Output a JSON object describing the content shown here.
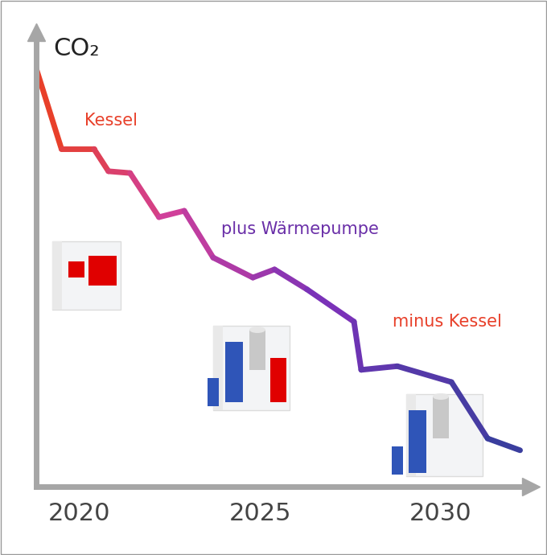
{
  "chart_data": {
    "type": "line",
    "y_label": "CO₂",
    "x": [
      2018.8,
      2019.5,
      2020.4,
      2020.8,
      2021.4,
      2022.2,
      2022.9,
      2023.7,
      2024.8,
      2025.4,
      2026.3,
      2027.6,
      2027.8,
      2028.8,
      2030.3,
      2031.3,
      2032.2
    ],
    "values": [
      92.0,
      74.3,
      74.3,
      69.4,
      69.0,
      59.3,
      60.7,
      50.4,
      46.0,
      47.8,
      43.4,
      36.3,
      25.7,
      26.5,
      23.0,
      10.6,
      8.0
    ],
    "xlim": [
      2018.8,
      2032.5
    ],
    "xticks": [
      2020,
      2025,
      2030
    ],
    "ylim": [
      0,
      100
    ],
    "yticks": [],
    "tick_labels": "x",
    "annotations": [
      "Kessel",
      "plus Wärmepumpe",
      "minus Kessel"
    ]
  }
}
